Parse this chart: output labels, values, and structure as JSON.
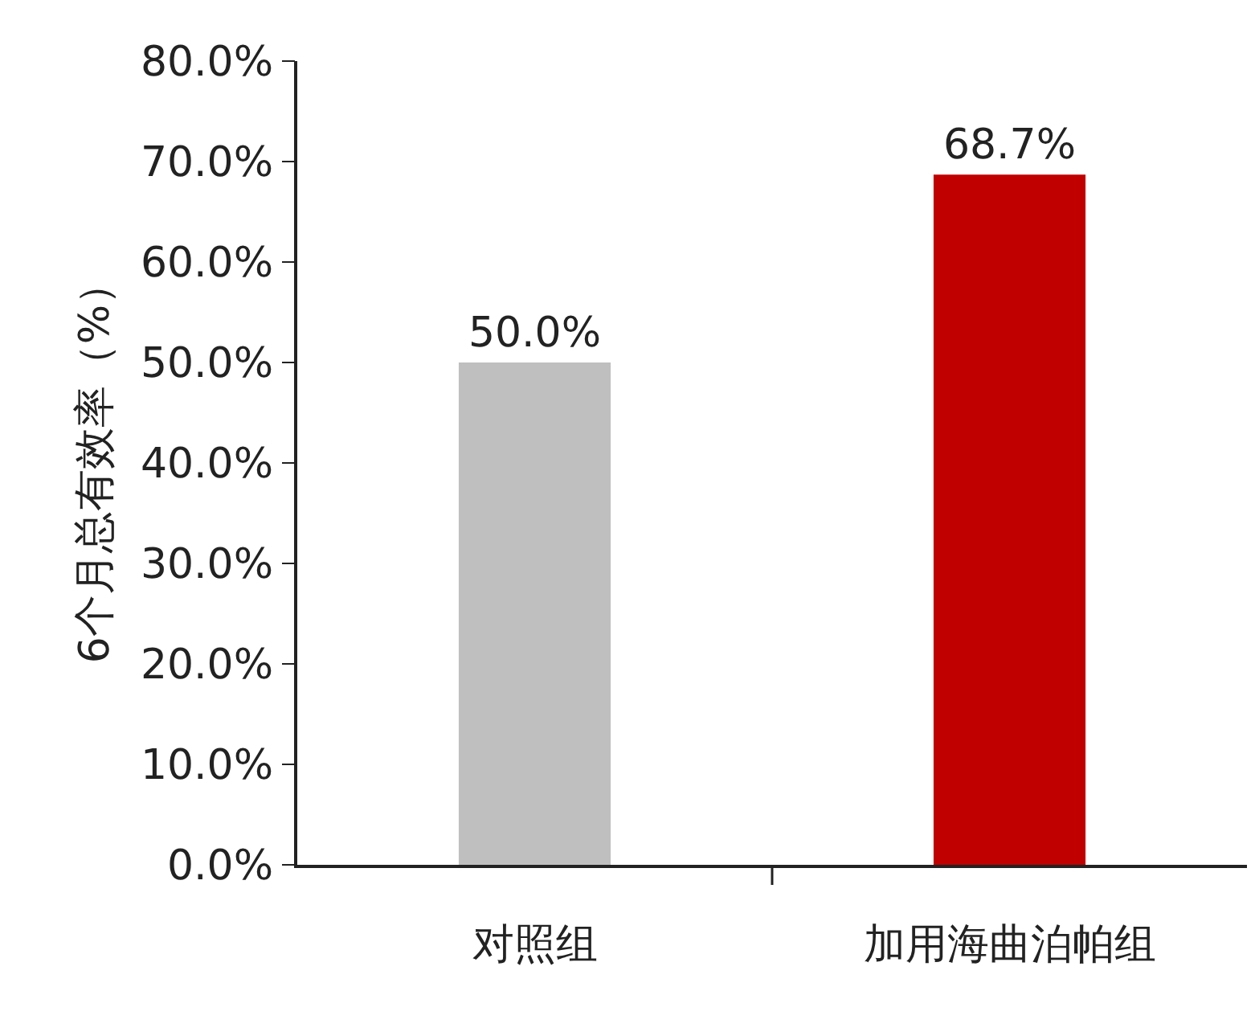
{
  "chart_data": {
    "type": "bar",
    "ylabel": "6个月总有效率（%）",
    "categories": [
      "对照组",
      "加用海曲泊帕组"
    ],
    "values": [
      50.0,
      68.7
    ],
    "colors": [
      "#bfbfbf",
      "#c00000"
    ],
    "value_labels": [
      "50.0%",
      "68.7%"
    ],
    "ylim": [
      0,
      80
    ],
    "yticks": [
      {
        "value": 0,
        "label": "0.0%"
      },
      {
        "value": 10,
        "label": "10.0%"
      },
      {
        "value": 20,
        "label": "20.0%"
      },
      {
        "value": 30,
        "label": "30.0%"
      },
      {
        "value": 40,
        "label": "40.0%"
      },
      {
        "value": 50,
        "label": "50.0%"
      },
      {
        "value": 60,
        "label": "60.0%"
      },
      {
        "value": 70,
        "label": "70.0%"
      },
      {
        "value": 80,
        "label": "80.0%"
      }
    ],
    "grid": false
  }
}
